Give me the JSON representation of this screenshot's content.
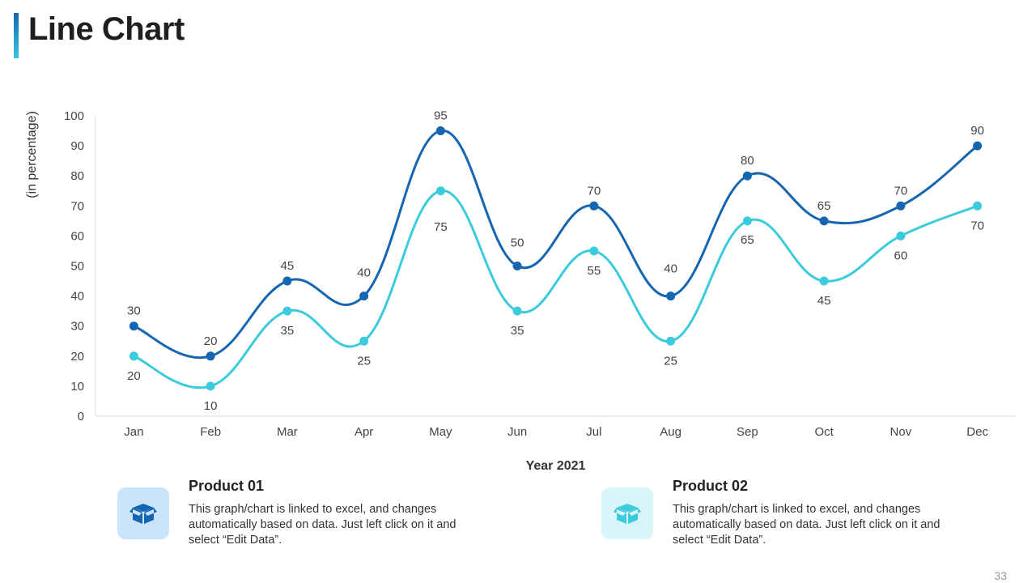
{
  "title": "Line Chart",
  "page_number": "33",
  "chart_data": {
    "type": "line",
    "categories": [
      "Jan",
      "Feb",
      "Mar",
      "Apr",
      "May",
      "Jun",
      "Jul",
      "Aug",
      "Sep",
      "Oct",
      "Nov",
      "Dec"
    ],
    "series": [
      {
        "name": "Product 01",
        "color": "#1565b0",
        "values": [
          30,
          20,
          45,
          40,
          95,
          50,
          70,
          40,
          80,
          65,
          70,
          90
        ]
      },
      {
        "name": "Product 02",
        "color": "#3bcbdc",
        "values": [
          20,
          10,
          35,
          25,
          75,
          35,
          55,
          25,
          65,
          45,
          60,
          70
        ]
      }
    ],
    "xlabel": "Year 2021",
    "ylabel": "(in percentage)",
    "ylim": [
      0,
      100
    ],
    "yticks": [
      0,
      10,
      20,
      30,
      40,
      50,
      60,
      70,
      80,
      90,
      100
    ]
  },
  "legend": [
    {
      "name": "Product 01",
      "description": "This graph/chart is linked to excel, and changes automatically based on data. Just left click on it and select “Edit Data”.",
      "icon": "box-icon",
      "icon_color": "#1565b0",
      "icon_bg": "#c9e4fb"
    },
    {
      "name": "Product 02",
      "description": "This graph/chart is linked to excel, and changes automatically based on data. Just left click on it and select “Edit Data”.",
      "icon": "box-icon",
      "icon_color": "#3bcbdc",
      "icon_bg": "#d8f6f9"
    }
  ]
}
